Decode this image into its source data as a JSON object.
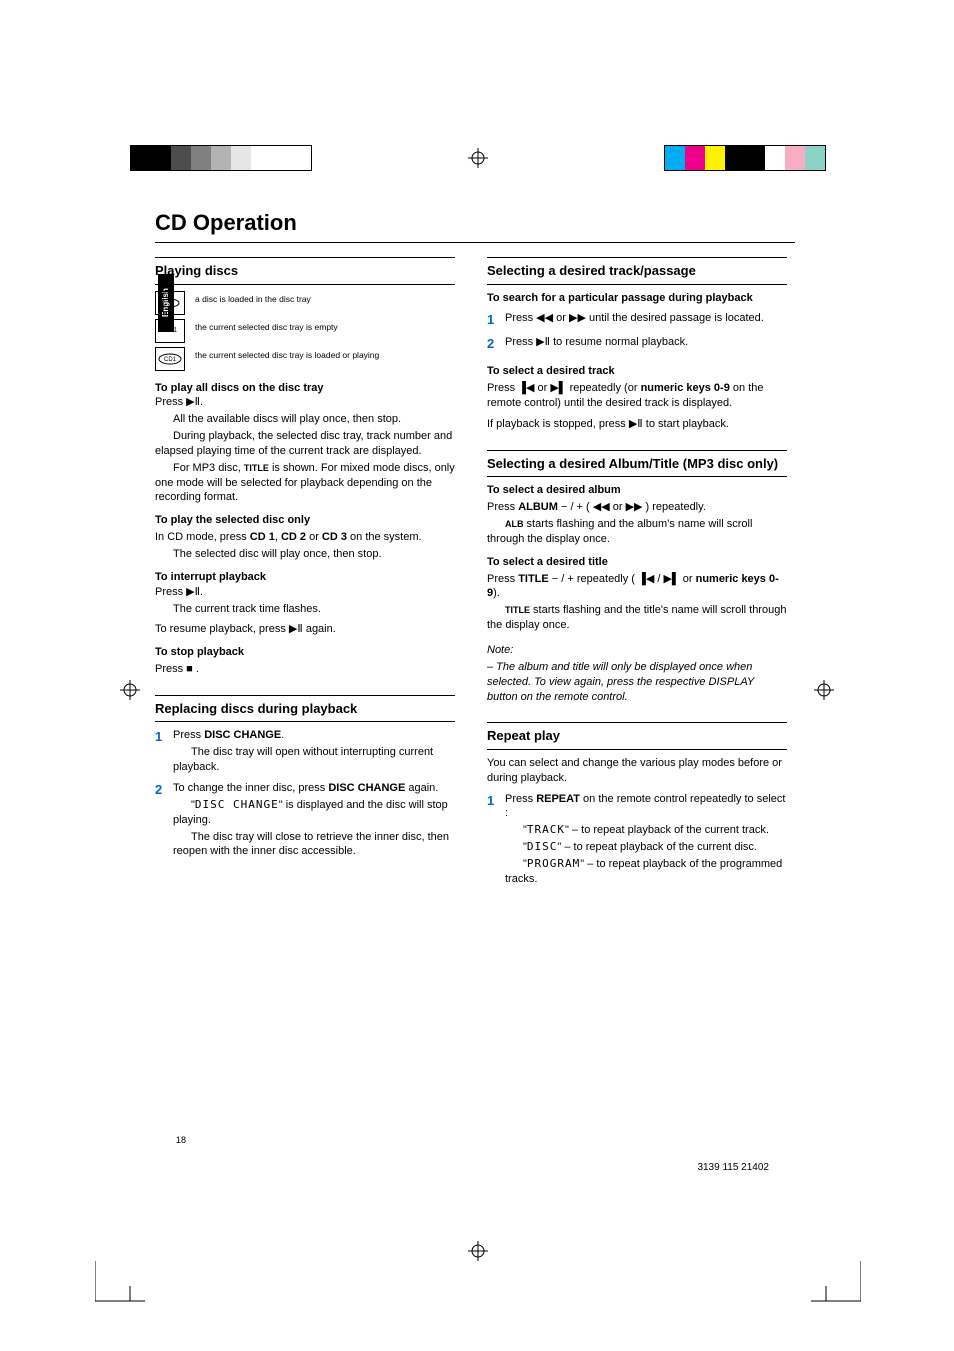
{
  "colorbars": {
    "left": [
      "#000000",
      "#000000",
      "#4d4d4d",
      "#808080",
      "#b3b3b3",
      "#e6e6e6",
      "#ffffff",
      "#ffffff",
      "#ffffff"
    ],
    "right": [
      "#00aeef",
      "#ec008c",
      "#fff200",
      "#000000",
      "#000000",
      "#ffffff",
      "#f7adc3",
      "#8bd3c7"
    ]
  },
  "page_title": "CD Operation",
  "side_tab": "English",
  "left_col": {
    "h1": "Playing discs",
    "icons": [
      {
        "label": "",
        "desc": "a disc is loaded in the disc tray",
        "variant": "disc"
      },
      {
        "label": "CD1",
        "desc": "the current selected disc tray is empty",
        "variant": "empty"
      },
      {
        "label": "CD1",
        "desc": "the current selected disc tray is loaded or playing",
        "variant": "playing"
      }
    ],
    "sub1": "To play all discs on the disc tray",
    "sub1_line": "Press ▶Ⅱ.",
    "p1a": "All the available discs will play once, then stop.",
    "p1b": "During playback, the selected disc tray, track number and elapsed playing time of the current track are displayed.",
    "p1c_pre": "For MP3 disc, ",
    "p1c_bold": "TITLE",
    "p1c_post": " is shown. For mixed mode discs, only one mode will be selected for playback depending on the recording format.",
    "sub2": "To play the selected disc only",
    "p2a_pre": "In CD mode, press ",
    "p2a_b1": "CD 1",
    "p2a_mid": ", ",
    "p2a_b2": "CD 2",
    "p2a_mid2": " or ",
    "p2a_b3": "CD 3",
    "p2a_post": " on the system.",
    "p2b": "The selected disc will play once, then stop.",
    "sub3": "To interrupt playback",
    "sub3_line": "Press ▶Ⅱ.",
    "p3a": "The current track time flashes.",
    "p3b": "To resume playback, press ▶Ⅱ again.",
    "sub4": "To stop playback",
    "p4": "Press  ■ .",
    "h2": "Replacing discs during playback",
    "s1_pre": "Press ",
    "s1_b": "DISC CHANGE",
    "s1_post": ".",
    "s1_d": "The disc tray will open without interrupting current playback.",
    "s2_pre": "To change the inner disc, press ",
    "s2_b": "DISC CHANGE",
    "s2_post": " again.",
    "s2_lcd": "DISC CHANGE",
    "s2_d1a": "\"",
    "s2_d1b": "\" is displayed and the disc will stop playing.",
    "s2_d2": "The disc tray will close to retrieve the inner disc, then reopen with the inner disc accessible."
  },
  "right_col": {
    "h1": "Selecting a desired track/passage",
    "sub1": "To search for a particular passage during playback",
    "s1": "Press  ◀◀ or ▶▶  until the desired passage is located.",
    "s2": "Press   ▶Ⅱ  to resume normal playback.",
    "sub2": "To select a desired track",
    "p2a_pre": "Press  ▐◀  or  ▶▌  repeatedly (or ",
    "p2a_b": "numeric keys 0-9",
    "p2a_post": " on the remote control) until the desired track is displayed.",
    "p2b": "If playback is stopped, press ▶Ⅱ  to start playback.",
    "h2": "Selecting a desired Album/Title (MP3 disc only)",
    "sub3": "To select a desired album",
    "p3a_pre": "Press ",
    "p3a_b": "ALBUM",
    "p3a_post": "  − / +  ( ◀◀ or ▶▶ ) repeatedly.",
    "p3b_b": "ALB",
    "p3b_post": " starts flashing and the album's name will scroll through the display once.",
    "sub4": "To select a desired title",
    "p4a_pre": "Press ",
    "p4a_b": "TITLE",
    "p4a_mid": "  − / +  repeatedly ( ▐◀  /  ▶▌  or ",
    "p4a_b2": "numeric keys 0-9",
    "p4a_post": ").",
    "p4b_b": "TITLE",
    "p4b_post": " starts flashing and the title's name will scroll through the display once.",
    "note_h": "Note:",
    "note_b": "–   The album and title will only be displayed once when selected.  To view again, press the respective DISPLAY button on the remote control.",
    "h3": "Repeat play",
    "p5": "You can select and change the various play modes before or during playback.",
    "rs1_pre": "Press ",
    "rs1_b": "REPEAT",
    "rs1_post": " on the remote control repeatedly to select :",
    "r1_lcd": "TRACK",
    "r1_post": "  – to repeat playback of the current track.",
    "r2_lcd": "DISC",
    "r2_post": "  – to repeat playback of the current disc.",
    "r3_lcd": "PROGRAM",
    "r3_post": "  – to repeat playback of the programmed tracks."
  },
  "page_number": "18",
  "footer_code": "3139 115 21402"
}
